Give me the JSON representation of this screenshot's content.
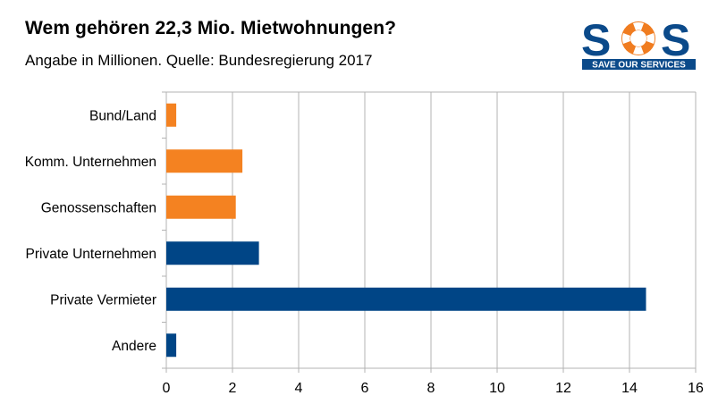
{
  "header": {
    "title": "Wem gehören 22,3 Mio. Mietwohnungen?",
    "subtitle": "Angabe in Millionen. Quelle: Bundesregierung 2017"
  },
  "logo": {
    "text_main": "SOS",
    "text_sub": "SAVE OUR SERVICES",
    "icon": "lifebuoy-icon",
    "color_blue": "#0b4a8a",
    "color_orange": "#f07c20"
  },
  "chart_data": {
    "type": "bar",
    "orientation": "horizontal",
    "categories": [
      "Bund/Land",
      "Komm. Unternehmen",
      "Genossenschaften",
      "Private Unternehmen",
      "Private Vermieter",
      "Andere"
    ],
    "values": [
      0.3,
      2.3,
      2.1,
      2.8,
      14.5,
      0.3
    ],
    "colors": [
      "#f48221",
      "#f48221",
      "#f48221",
      "#004586",
      "#004586",
      "#004586"
    ],
    "xlim": [
      0,
      16
    ],
    "xticks": [
      0,
      2,
      4,
      6,
      8,
      10,
      12,
      14,
      16
    ],
    "grid": true,
    "title": "Wem gehören 22,3 Mio. Mietwohnungen?",
    "xlabel": "",
    "ylabel": ""
  }
}
